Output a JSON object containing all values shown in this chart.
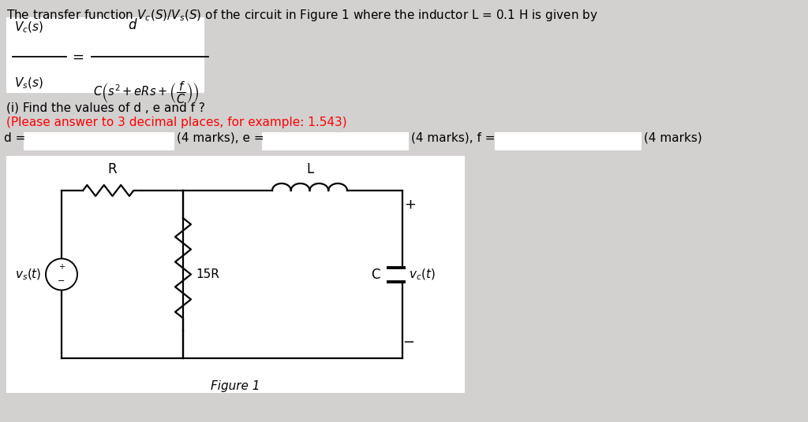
{
  "bg_color": "#d3d0d0",
  "formula_box_color": "#ffffff",
  "circuit_box_color": "#ffffff",
  "figure_label": "Figure 1",
  "title": "The transfer function $V_c(S)/V_s(S)$ of the circuit in Figure 1 where the inductor L = 0.1 H is given by",
  "question": "(i) Find the values of d , e and f ?",
  "red_note": "(Please answer to 3 decimal places, for example: 1.543)"
}
